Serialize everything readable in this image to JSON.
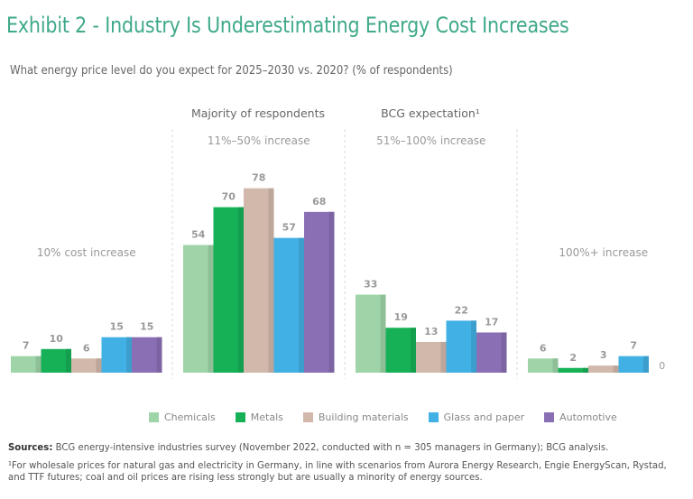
{
  "title": "Exhibit 2 - Industry Is Underestimating Energy Cost Increases",
  "subtitle": "What energy price level do you expect for 2025–2030 vs. 2020? (% of respondents)",
  "headers": {
    "majority": "Majority of respondents",
    "bcg": "BCG expectation¹"
  },
  "legend": [
    {
      "label": "Chemicals",
      "color": "#9fd4a8"
    },
    {
      "label": "Metals",
      "color": "#16b157"
    },
    {
      "label": "Building materials",
      "color": "#d1b8ab"
    },
    {
      "label": "Glass and paper",
      "color": "#41b0e4"
    },
    {
      "label": "Automotive",
      "color": "#8a6fb5"
    }
  ],
  "footer": {
    "sources_label": "Sources:",
    "sources_text": " BCG energy-intensive industries survey (November 2022, conducted with n = 305 managers in Germany); BCG analysis.",
    "footnote": "¹For wholesale prices for natural gas and electricity in Germany, in line with scenarios from Aurora Energy Research, Engie EnergyScan, Rystad, and TTF futures; coal and oil prices are rising less strongly but are usually a minority of energy sources."
  },
  "chart_data": {
    "type": "bar",
    "title": "Exhibit 2 - Industry Is Underestimating Energy Cost Increases",
    "xlabel": "",
    "ylabel": "% of respondents",
    "ylim": [
      0,
      100
    ],
    "grid": false,
    "legend_position": "bottom",
    "categories": [
      "10% cost increase",
      "11%–50% increase",
      "51%–100% increase",
      "100%+ increase"
    ],
    "series": [
      {
        "name": "Chemicals",
        "color": "#9fd4a8",
        "values": [
          7,
          54,
          33,
          6
        ]
      },
      {
        "name": "Metals",
        "color": "#16b157",
        "values": [
          10,
          70,
          19,
          2
        ]
      },
      {
        "name": "Building materials",
        "color": "#d1b8ab",
        "values": [
          6,
          78,
          13,
          3
        ]
      },
      {
        "name": "Glass and paper",
        "color": "#41b0e4",
        "values": [
          15,
          57,
          22,
          7
        ]
      },
      {
        "name": "Automotive",
        "color": "#8a6fb5",
        "values": [
          15,
          68,
          17,
          0
        ]
      }
    ]
  }
}
